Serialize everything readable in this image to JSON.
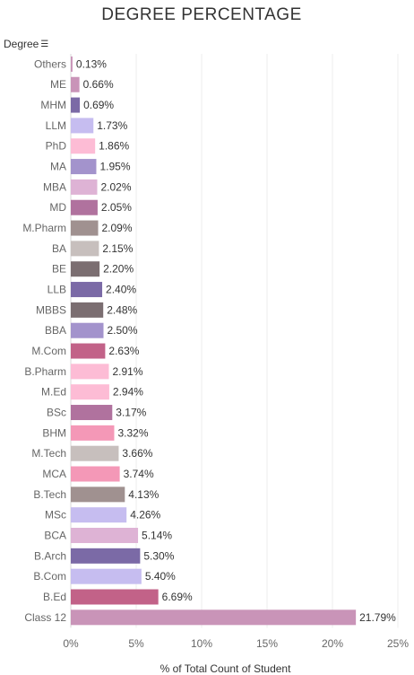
{
  "chart_data": {
    "type": "bar",
    "orientation": "horizontal",
    "title": "DEGREE PERCENTAGE",
    "y_header": "Degree",
    "xlabel": "% of Total Count of Student",
    "xlim": [
      0,
      25
    ],
    "xticks": [
      {
        "value": 0,
        "label": "0%"
      },
      {
        "value": 5,
        "label": "5%"
      },
      {
        "value": 10,
        "label": "10%"
      },
      {
        "value": 15,
        "label": "15%"
      },
      {
        "value": 20,
        "label": "20%"
      },
      {
        "value": 25,
        "label": "25%"
      }
    ],
    "grid": true,
    "categories": [
      "Others",
      "ME",
      "MHM",
      "LLM",
      "PhD",
      "MA",
      "MBA",
      "MD",
      "M.Pharm",
      "BA",
      "BE",
      "LLB",
      "MBBS",
      "BBA",
      "M.Com",
      "B.Pharm",
      "M.Ed",
      "BSc",
      "BHM",
      "M.Tech",
      "MCA",
      "B.Tech",
      "MSc",
      "BCA",
      "B.Arch",
      "B.Com",
      "B.Ed",
      "Class 12"
    ],
    "values": [
      0.13,
      0.66,
      0.69,
      1.73,
      1.86,
      1.95,
      2.02,
      2.05,
      2.09,
      2.15,
      2.2,
      2.4,
      2.48,
      2.5,
      2.63,
      2.91,
      2.94,
      3.17,
      3.32,
      3.66,
      3.74,
      4.13,
      4.26,
      5.14,
      5.3,
      5.4,
      6.69,
      21.79
    ],
    "value_labels": [
      "0.13%",
      "0.66%",
      "0.69%",
      "1.73%",
      "1.86%",
      "1.95%",
      "2.02%",
      "2.05%",
      "2.09%",
      "2.15%",
      "2.20%",
      "2.40%",
      "2.48%",
      "2.50%",
      "2.63%",
      "2.91%",
      "2.94%",
      "3.17%",
      "3.32%",
      "3.66%",
      "3.74%",
      "4.13%",
      "4.26%",
      "5.14%",
      "5.30%",
      "5.40%",
      "6.69%",
      "21.79%"
    ],
    "colors": [
      "#c994b8",
      "#c994b8",
      "#7b6aa6",
      "#c6bdf0",
      "#fdbcd5",
      "#a393cc",
      "#deb3d5",
      "#b0729e",
      "#a09190",
      "#c7bfbd",
      "#7b6e71",
      "#7b6aa6",
      "#7b6e71",
      "#a393cc",
      "#c26288",
      "#fdbcd5",
      "#fdbcd5",
      "#b0729e",
      "#f498b7",
      "#c7bfbd",
      "#f498b7",
      "#a09190",
      "#c6bdf0",
      "#deb3d5",
      "#7b6aa6",
      "#c6bdf0",
      "#c26288",
      "#c994b8"
    ]
  },
  "icons": {
    "sort": "sort-descending-icon"
  }
}
